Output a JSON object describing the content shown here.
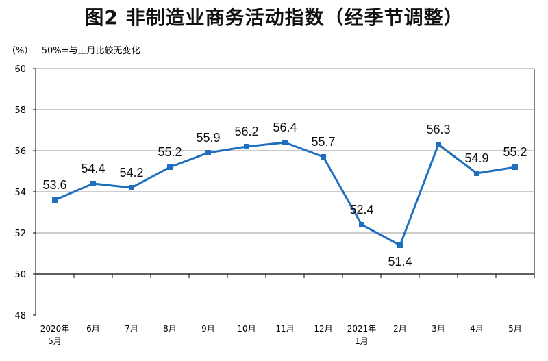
{
  "chart_data": {
    "type": "line",
    "title": "图2 非制造业商务活动指数（经季节调整）",
    "unit_label": "（%）",
    "note": "50%=与上月比较无变化",
    "categories": [
      [
        "2020年",
        "5月"
      ],
      [
        "6月"
      ],
      [
        "7月"
      ],
      [
        "8月"
      ],
      [
        "9月"
      ],
      [
        "10月"
      ],
      [
        "11月"
      ],
      [
        "12月"
      ],
      [
        "2021年",
        "1月"
      ],
      [
        "2月"
      ],
      [
        "3月"
      ],
      [
        "4月"
      ],
      [
        "5月"
      ]
    ],
    "values": [
      53.6,
      54.4,
      54.2,
      55.2,
      55.9,
      56.2,
      56.4,
      55.7,
      52.4,
      51.4,
      56.3,
      54.9,
      55.2
    ],
    "value_labels": [
      "53.6",
      "54.4",
      "54.2",
      "55.2",
      "55.9",
      "56.2",
      "56.4",
      "55.7",
      "52.4",
      "51.4",
      "56.3",
      "54.9",
      "55.2"
    ],
    "yticks": [
      "48",
      "50",
      "52",
      "54",
      "56",
      "58",
      "60"
    ],
    "ylim": [
      48,
      60
    ],
    "baseline": 50,
    "grid": true,
    "series_color": "#1f6fbf"
  }
}
